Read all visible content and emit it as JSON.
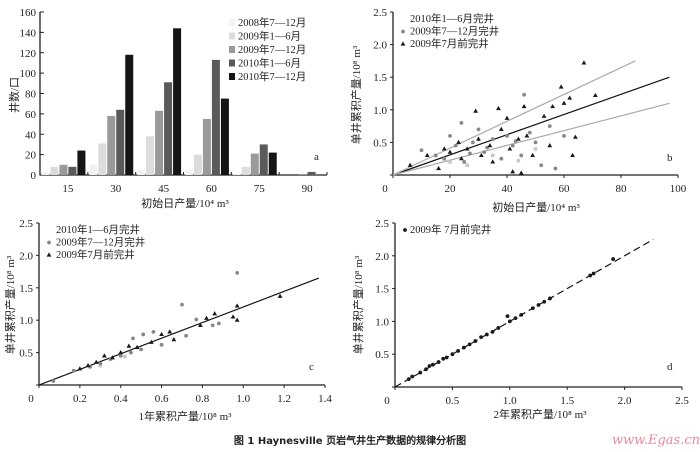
{
  "caption": "图 1  Haynesville 页岩气井生产数据的规律分析图",
  "watermark": "www.Egas.cn",
  "chart_data": [
    {
      "panel": "a",
      "type": "bar",
      "xlabel": "初始日产量/10⁴ m³",
      "ylabel": "井数/口",
      "categories": [
        "15",
        "30",
        "45",
        "60",
        "75",
        "90"
      ],
      "ylim": [
        0,
        160
      ],
      "yticks": [
        0,
        20,
        40,
        60,
        80,
        100,
        120,
        140,
        160
      ],
      "legend_position": "top-right",
      "series": [
        {
          "name": "2008年7—12月",
          "color": "#f2f2f2",
          "values": [
            3,
            10,
            5,
            5,
            1,
            0
          ]
        },
        {
          "name": "2009年1—6月",
          "color": "#dcdcdc",
          "values": [
            8,
            31,
            38,
            20,
            8,
            0
          ]
        },
        {
          "name": "2009年7—12月",
          "color": "#9a9a9a",
          "values": [
            10,
            58,
            63,
            55,
            21,
            1
          ]
        },
        {
          "name": "2010年1—6月",
          "color": "#5a5a5a",
          "values": [
            8,
            64,
            91,
            113,
            30,
            3
          ]
        },
        {
          "name": "2010年7—12月",
          "color": "#151515",
          "values": [
            24,
            118,
            144,
            75,
            22,
            0
          ]
        }
      ]
    },
    {
      "panel": "b",
      "type": "scatter",
      "xlabel": "初始日产量/10⁴ m³",
      "ylabel": "单井累积产量/10⁸ m³",
      "xlim": [
        0,
        100
      ],
      "ylim": [
        0,
        2.5
      ],
      "xticks": [
        0,
        20,
        40,
        60,
        80,
        100
      ],
      "yticks": [
        "",
        "0.5",
        "1.0",
        "1.5",
        "2.0",
        "2.5"
      ],
      "legend_position": "top-left",
      "series": [
        {
          "name": "2010年1—6月完井",
          "marker": "square",
          "color": "#c8c8c8",
          "points": [
            [
              20,
              0.2
            ],
            [
              35,
              0.3
            ],
            [
              50,
              0.4
            ],
            [
              26,
              0.15
            ],
            [
              44,
              0.22
            ]
          ]
        },
        {
          "name": "2009年7—12月完井",
          "marker": "circle",
          "color": "#888888",
          "points": [
            [
              10,
              0.38
            ],
            [
              15,
              0.3
            ],
            [
              20,
              0.6
            ],
            [
              22,
              0.45
            ],
            [
              24,
              0.8
            ],
            [
              25,
              0.2
            ],
            [
              28,
              0.5
            ],
            [
              30,
              0.7
            ],
            [
              32,
              0.35
            ],
            [
              35,
              0.55
            ],
            [
              38,
              0.25
            ],
            [
              40,
              0.6
            ],
            [
              42,
              0.45
            ],
            [
              45,
              0.3
            ],
            [
              46,
              1.23
            ],
            [
              48,
              0.65
            ],
            [
              50,
              0.5
            ],
            [
              52,
              0.15
            ],
            [
              55,
              0.75
            ],
            [
              57,
              0.1
            ],
            [
              60,
              0.6
            ],
            [
              18,
              0.25
            ],
            [
              33,
              0.42
            ],
            [
              27,
              0.33
            ],
            [
              43,
              0.52
            ]
          ]
        },
        {
          "name": "2009年7月前完井",
          "marker": "triangle",
          "color": "#1a1a1a",
          "points": [
            [
              6,
              0.15
            ],
            [
              12,
              0.3
            ],
            [
              16,
              0.1
            ],
            [
              18,
              0.4
            ],
            [
              20,
              0.35
            ],
            [
              23,
              0.5
            ],
            [
              26,
              0.4
            ],
            [
              29,
              0.98
            ],
            [
              31,
              0.3
            ],
            [
              34,
              0.45
            ],
            [
              37,
              1.02
            ],
            [
              38,
              0.7
            ],
            [
              40,
              0.87
            ],
            [
              41,
              0.4
            ],
            [
              44,
              0.55
            ],
            [
              46,
              1.05
            ],
            [
              47,
              0.6
            ],
            [
              49,
              0.3
            ],
            [
              53,
              0.9
            ],
            [
              55,
              0.45
            ],
            [
              56,
              1.05
            ],
            [
              59,
              1.35
            ],
            [
              60,
              1.1
            ],
            [
              62,
              1.18
            ],
            [
              63,
              0.3
            ],
            [
              64,
              0.58
            ],
            [
              67,
              1.72
            ],
            [
              71,
              1.22
            ],
            [
              35,
              0.2
            ],
            [
              24,
              0.25
            ],
            [
              30,
              0.55
            ],
            [
              42,
              0.05
            ],
            [
              45,
              0.03
            ]
          ]
        }
      ],
      "lines": [
        {
          "from": [
            0,
            0
          ],
          "to": [
            97,
            1.5
          ],
          "color": "#111111"
        },
        {
          "from": [
            0,
            0
          ],
          "to": [
            85,
            1.75
          ],
          "color": "#aaaaaa"
        },
        {
          "from": [
            0,
            0
          ],
          "to": [
            97,
            1.1
          ],
          "color": "#aaaaaa"
        }
      ]
    },
    {
      "panel": "c",
      "type": "scatter",
      "xlabel": "1年累积产量/10⁸ m³",
      "ylabel": "单井累积产量/10⁸ m³",
      "xlim": [
        0,
        1.4
      ],
      "ylim": [
        0,
        2.5
      ],
      "xticks": [
        "0",
        "0.2",
        "0.4",
        "0.6",
        "0.8",
        "1.0",
        "1.2",
        "1.4"
      ],
      "yticks": [
        "",
        "0.5",
        "1.0",
        "1.5",
        "2.0",
        "2.5"
      ],
      "legend_position": "top-left",
      "series": [
        {
          "name": "2010年1—6月完井",
          "marker": "square",
          "color": "#c8c8c8",
          "points": [
            [
              0.3,
              0.3
            ],
            [
              0.42,
              0.44
            ]
          ]
        },
        {
          "name": "2009年7—12月完井",
          "marker": "circle",
          "color": "#888888",
          "points": [
            [
              0.07,
              0.06
            ],
            [
              0.17,
              0.22
            ],
            [
              0.25,
              0.28
            ],
            [
              0.3,
              0.33
            ],
            [
              0.35,
              0.4
            ],
            [
              0.4,
              0.45
            ],
            [
              0.46,
              0.72
            ],
            [
              0.5,
              0.55
            ],
            [
              0.51,
              0.78
            ],
            [
              0.56,
              0.82
            ],
            [
              0.6,
              0.62
            ],
            [
              0.7,
              1.24
            ],
            [
              0.72,
              0.76
            ],
            [
              0.77,
              1.01
            ],
            [
              0.85,
              0.92
            ],
            [
              0.88,
              0.95
            ],
            [
              0.97,
              1.73
            ],
            [
              0.45,
              0.5
            ]
          ]
        },
        {
          "name": "2009年7月前完井",
          "marker": "triangle",
          "color": "#1a1a1a",
          "points": [
            [
              0.2,
              0.25
            ],
            [
              0.24,
              0.3
            ],
            [
              0.28,
              0.35
            ],
            [
              0.32,
              0.45
            ],
            [
              0.36,
              0.42
            ],
            [
              0.4,
              0.5
            ],
            [
              0.44,
              0.6
            ],
            [
              0.48,
              0.58
            ],
            [
              0.55,
              0.66
            ],
            [
              0.6,
              0.78
            ],
            [
              0.64,
              0.82
            ],
            [
              0.66,
              0.7
            ],
            [
              0.79,
              0.92
            ],
            [
              0.82,
              1.03
            ],
            [
              0.86,
              1.1
            ],
            [
              0.95,
              1.05
            ],
            [
              0.97,
              1.0
            ],
            [
              0.97,
              1.22
            ],
            [
              1.18,
              1.37
            ]
          ]
        }
      ],
      "lines": [
        {
          "from": [
            0,
            0
          ],
          "to": [
            1.37,
            1.65
          ],
          "color": "#111111"
        }
      ]
    },
    {
      "panel": "d",
      "type": "scatter",
      "xlabel": "2年累积产量/10⁸ m³",
      "ylabel": "单井累积产量/10⁸ m³",
      "xlim": [
        0,
        2.5
      ],
      "ylim": [
        0,
        2.5
      ],
      "xticks": [
        "0",
        "0.5",
        "1.0",
        "1.5",
        "2.0",
        "2.5"
      ],
      "yticks": [
        "",
        "0.5",
        "1.0",
        "1.5",
        "2.0",
        "2.5"
      ],
      "legend_position": "top-left",
      "series": [
        {
          "name": "2009年 7月前完井",
          "marker": "circle",
          "color": "#1a1a1a",
          "points": [
            [
              0.12,
              0.12
            ],
            [
              0.15,
              0.16
            ],
            [
              0.22,
              0.22
            ],
            [
              0.27,
              0.27
            ],
            [
              0.3,
              0.32
            ],
            [
              0.33,
              0.34
            ],
            [
              0.38,
              0.38
            ],
            [
              0.42,
              0.43
            ],
            [
              0.45,
              0.45
            ],
            [
              0.5,
              0.5
            ],
            [
              0.55,
              0.55
            ],
            [
              0.6,
              0.6
            ],
            [
              0.65,
              0.65
            ],
            [
              0.7,
              0.7
            ],
            [
              0.75,
              0.76
            ],
            [
              0.8,
              0.8
            ],
            [
              0.85,
              0.84
            ],
            [
              0.9,
              0.9
            ],
            [
              0.98,
              1.08
            ],
            [
              1.0,
              1.0
            ],
            [
              1.05,
              1.05
            ],
            [
              1.1,
              1.1
            ],
            [
              1.2,
              1.2
            ],
            [
              1.25,
              1.25
            ],
            [
              1.3,
              1.3
            ],
            [
              1.35,
              1.35
            ],
            [
              1.7,
              1.7
            ],
            [
              1.73,
              1.73
            ],
            [
              1.9,
              1.95
            ]
          ]
        }
      ],
      "lines": [
        {
          "from": [
            0,
            0
          ],
          "to": [
            2.25,
            2.25
          ],
          "color": "#111111",
          "dashed": true
        }
      ]
    }
  ]
}
